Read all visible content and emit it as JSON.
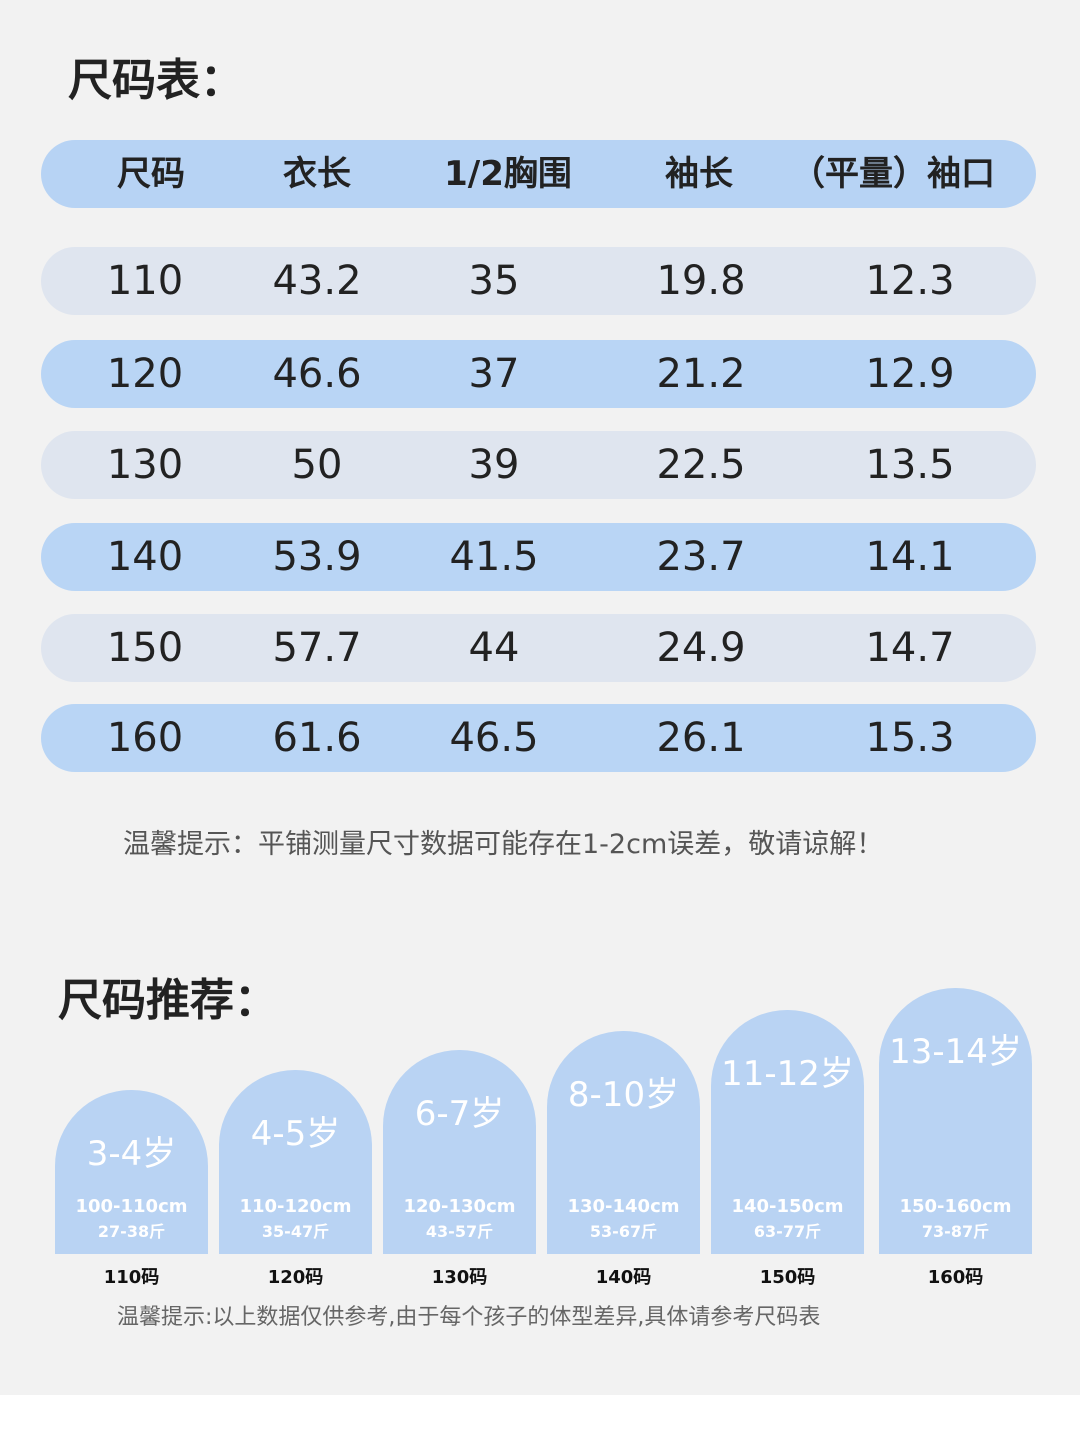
{
  "size_chart": {
    "title": "尺码表：",
    "headers": [
      "尺码",
      "衣长",
      "1/2胸围",
      "袖长",
      "（平量）袖口"
    ],
    "rows": [
      [
        "110",
        "43.2",
        "35",
        "19.8",
        "12.3"
      ],
      [
        "120",
        "46.6",
        "37",
        "21.2",
        "12.9"
      ],
      [
        "130",
        "50",
        "39",
        "22.5",
        "13.5"
      ],
      [
        "140",
        "53.9",
        "41.5",
        "23.7",
        "14.1"
      ],
      [
        "150",
        "57.7",
        "44",
        "24.9",
        "14.7"
      ],
      [
        "160",
        "61.6",
        "46.5",
        "26.1",
        "15.3"
      ]
    ],
    "note": "温馨提示：平铺测量尺寸数据可能存在1-2cm误差，敬请谅解！"
  },
  "recommendation": {
    "title": "尺码推荐：",
    "cards": [
      {
        "age": "3-4岁",
        "height": "100-110cm",
        "weight": "27-38斤",
        "size": "110码"
      },
      {
        "age": "4-5岁",
        "height": "110-120cm",
        "weight": "35-47斤",
        "size": "120码"
      },
      {
        "age": "6-7岁",
        "height": "120-130cm",
        "weight": "43-57斤",
        "size": "130码"
      },
      {
        "age": "8-10岁",
        "height": "130-140cm",
        "weight": "53-67斤",
        "size": "140码"
      },
      {
        "age": "11-12岁",
        "height": "140-150cm",
        "weight": "63-77斤",
        "size": "150码"
      },
      {
        "age": "13-14岁",
        "height": "150-160cm",
        "weight": "73-87斤",
        "size": "160码"
      }
    ],
    "note": "温馨提示:以上数据仅供参考,由于每个孩子的体型差异,具体请参考尺码表"
  }
}
